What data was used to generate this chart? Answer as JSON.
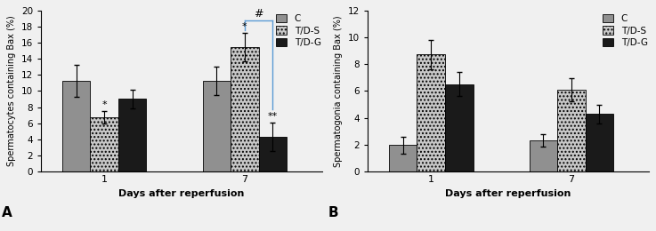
{
  "panel_A": {
    "title": "A",
    "ylabel": "Spermatocytes containing Bax (%)",
    "xlabel": "Days after reperfusion",
    "ylim": [
      0,
      20
    ],
    "yticks": [
      0,
      2,
      4,
      6,
      8,
      10,
      12,
      14,
      16,
      18,
      20
    ],
    "groups": [
      "1",
      "7"
    ],
    "series": {
      "C": {
        "values": [
          11.3,
          11.3
        ],
        "errors": [
          2.0,
          1.8
        ],
        "color": "#909090",
        "hatch": null
      },
      "T/D-S": {
        "values": [
          6.7,
          15.5
        ],
        "errors": [
          0.8,
          1.8
        ],
        "color": "#c8c8c8",
        "hatch": "...."
      },
      "T/D-G": {
        "values": [
          9.0,
          4.3
        ],
        "errors": [
          1.2,
          1.8
        ],
        "color": "#1a1a1a",
        "hatch": null
      }
    },
    "bar_width": 0.2,
    "group_positions": [
      1.0,
      2.0
    ],
    "annotations": true
  },
  "panel_B": {
    "title": "B",
    "ylabel": "Spermatogonia containing Bax (%)",
    "xlabel": "Days after reperfusion",
    "ylim": [
      0,
      12
    ],
    "yticks": [
      0,
      2,
      4,
      6,
      8,
      10,
      12
    ],
    "groups": [
      "1",
      "7"
    ],
    "series": {
      "C": {
        "values": [
          1.95,
          2.3
        ],
        "errors": [
          0.65,
          0.45
        ],
        "color": "#909090",
        "hatch": null
      },
      "T/D-S": {
        "values": [
          8.75,
          6.1
        ],
        "errors": [
          1.1,
          0.85
        ],
        "color": "#c8c8c8",
        "hatch": "...."
      },
      "T/D-G": {
        "values": [
          6.5,
          4.3
        ],
        "errors": [
          0.9,
          0.7
        ],
        "color": "#1a1a1a",
        "hatch": null
      }
    },
    "bar_width": 0.2,
    "group_positions": [
      1.0,
      2.0
    ],
    "annotations": false
  },
  "legend": {
    "labels": [
      "C",
      "T/D-S",
      "T/D-G"
    ],
    "colors": [
      "#909090",
      "#c8c8c8",
      "#1a1a1a"
    ],
    "hatches": [
      null,
      "....",
      null
    ]
  },
  "figure_bg": "#f0f0f0",
  "axes_bg": "#f0f0f0",
  "bar_edgecolor": "#000000",
  "errorbar_color": "#000000",
  "bracket_color": "#5b9bd5"
}
